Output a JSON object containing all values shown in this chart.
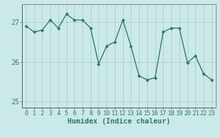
{
  "xlabel": "Humidex (Indice chaleur)",
  "x": [
    0,
    1,
    2,
    3,
    4,
    5,
    6,
    7,
    8,
    9,
    10,
    11,
    12,
    13,
    14,
    15,
    16,
    17,
    18,
    19,
    20,
    21,
    22,
    23
  ],
  "y": [
    26.9,
    26.75,
    26.8,
    27.05,
    26.85,
    27.2,
    27.05,
    27.05,
    26.85,
    25.95,
    26.4,
    26.5,
    27.05,
    26.4,
    25.65,
    25.55,
    25.6,
    26.75,
    26.85,
    26.85,
    25.98,
    26.15,
    25.7,
    25.55
  ],
  "line_color": "#2d7a6a",
  "marker": "D",
  "marker_size": 2.2,
  "bg_color": "#cce9e9",
  "grid_color": "#aacccc",
  "ylim": [
    24.85,
    27.45
  ],
  "yticks": [
    25,
    26,
    27
  ],
  "xticks": [
    0,
    1,
    2,
    3,
    4,
    5,
    6,
    7,
    8,
    9,
    10,
    11,
    12,
    13,
    14,
    15,
    16,
    17,
    18,
    19,
    20,
    21,
    22,
    23
  ],
  "tick_fontsize": 6.5,
  "xlabel_fontsize": 7.5,
  "line_width": 1.0
}
